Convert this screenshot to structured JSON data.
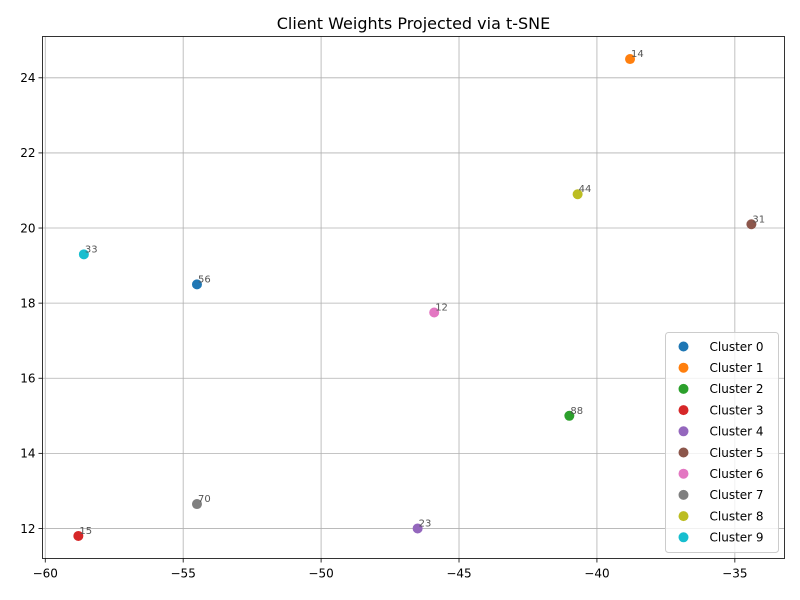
{
  "chart_data": {
    "type": "scatter",
    "title": "Client Weights Projected via t-SNE",
    "xlabel": "",
    "ylabel": "",
    "xlim": [
      -60.1,
      -33.2
    ],
    "ylim": [
      11.2,
      25.1
    ],
    "xticks": [
      -60,
      -55,
      -50,
      -45,
      -40,
      -35
    ],
    "yticks": [
      12,
      14,
      16,
      18,
      20,
      22,
      24
    ],
    "grid": true,
    "legend_position": "lower-right",
    "series": [
      {
        "name": "Cluster 0",
        "color": "#1f77b4",
        "points": [
          {
            "x": -54.5,
            "y": 18.5,
            "label": "56"
          }
        ]
      },
      {
        "name": "Cluster 1",
        "color": "#ff7f0e",
        "points": [
          {
            "x": -38.8,
            "y": 24.5,
            "label": "14"
          }
        ]
      },
      {
        "name": "Cluster 2",
        "color": "#2ca02c",
        "points": [
          {
            "x": -41.0,
            "y": 15.0,
            "label": "88"
          }
        ]
      },
      {
        "name": "Cluster 3",
        "color": "#d62728",
        "points": [
          {
            "x": -58.8,
            "y": 11.8,
            "label": "15"
          }
        ]
      },
      {
        "name": "Cluster 4",
        "color": "#9467bd",
        "points": [
          {
            "x": -46.5,
            "y": 12.0,
            "label": "23"
          }
        ]
      },
      {
        "name": "Cluster 5",
        "color": "#8c564b",
        "points": [
          {
            "x": -34.4,
            "y": 20.1,
            "label": "31"
          }
        ]
      },
      {
        "name": "Cluster 6",
        "color": "#e377c2",
        "points": [
          {
            "x": -45.9,
            "y": 17.75,
            "label": "12"
          }
        ]
      },
      {
        "name": "Cluster 7",
        "color": "#7f7f7f",
        "points": [
          {
            "x": -54.5,
            "y": 12.65,
            "label": "70"
          }
        ]
      },
      {
        "name": "Cluster 8",
        "color": "#bcbd22",
        "points": [
          {
            "x": -40.7,
            "y": 20.9,
            "label": "44"
          }
        ]
      },
      {
        "name": "Cluster 9",
        "color": "#17becf",
        "points": [
          {
            "x": -58.6,
            "y": 19.3,
            "label": "33"
          }
        ]
      }
    ]
  }
}
